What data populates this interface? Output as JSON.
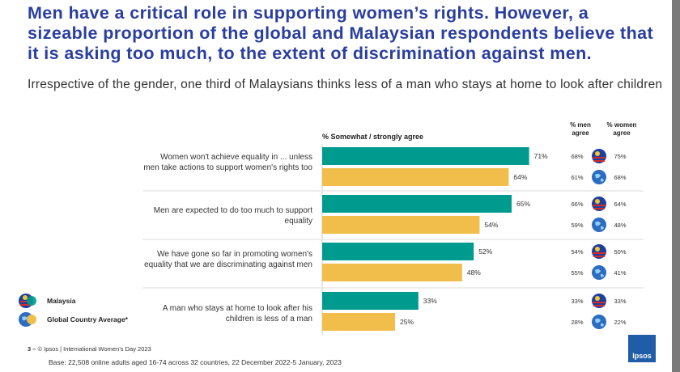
{
  "title": "Men have a critical role in supporting women’s rights. However, a sizeable proportion of the global and Malaysian respondents believe that it is asking too much, to the extent of discrimination against men.",
  "subtitle": "Irrespective of the gender, one third of Malaysians thinks less of a man who stays at home to look after children",
  "chart_header": "% Somewhat / strongly agree",
  "col_men": "% men agree",
  "col_women": "% women agree",
  "legend": [
    {
      "label": "Malaysia",
      "icon": "malaysia-flag-icon"
    },
    {
      "label": "Global Country Average*",
      "icon": "globe-icon"
    }
  ],
  "footer": {
    "page": "3 –",
    "source": "© Ipsos | International Women’s Day 2023",
    "base": "Base: 22,508 online adults aged 16-74 across 32 countries, 22 December 2022-5 January, 2023"
  },
  "logo_text": "Ipsos",
  "colors": {
    "malaysia": "#009b8f",
    "global": "#f1bd4b",
    "title": "#2a3ea0"
  },
  "chart_data": {
    "type": "bar",
    "orientation": "horizontal",
    "categories": [
      "Women won't achieve equality in ... unless men take actions to support women's rights too",
      "Men are expected to do too much to support equality",
      "We have gone so far in promoting women's equality that we are discriminating against men",
      "A man who stays at home to look after his children is less of a man"
    ],
    "series": [
      {
        "name": "Malaysia",
        "values": [
          71,
          65,
          52,
          33
        ],
        "labels": [
          "71%",
          "65%",
          "52%",
          "33%"
        ],
        "men": [
          "68%",
          "66%",
          "54%",
          "33%"
        ],
        "women": [
          "75%",
          "64%",
          "50%",
          "33%"
        ]
      },
      {
        "name": "Global Country Average*",
        "values": [
          64,
          54,
          48,
          25
        ],
        "labels": [
          "64%",
          "54%",
          "48%",
          "25%"
        ],
        "men": [
          "61%",
          "59%",
          "55%",
          "28%"
        ],
        "women": [
          "68%",
          "48%",
          "41%",
          "22%"
        ]
      }
    ],
    "xlim": [
      0,
      100
    ],
    "grid": false
  }
}
